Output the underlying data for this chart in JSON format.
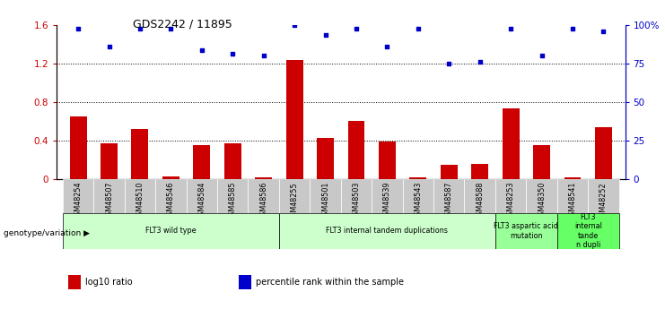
{
  "title": "GDS2242 / 11895",
  "samples": [
    "GSM48254",
    "GSM48507",
    "GSM48510",
    "GSM48546",
    "GSM48584",
    "GSM48585",
    "GSM48586",
    "GSM48255",
    "GSM48501",
    "GSM48503",
    "GSM48539",
    "GSM48543",
    "GSM48587",
    "GSM48588",
    "GSM48253",
    "GSM48350",
    "GSM48541",
    "GSM48252"
  ],
  "log10_ratio": [
    0.65,
    0.37,
    0.52,
    0.03,
    0.35,
    0.37,
    0.02,
    1.23,
    0.43,
    0.6,
    0.39,
    0.02,
    0.15,
    0.16,
    0.73,
    0.35,
    0.02,
    0.54
  ],
  "percentile_rank": [
    97.5,
    86.0,
    97.5,
    97.5,
    83.5,
    81.0,
    80.0,
    100.0,
    93.5,
    97.5,
    86.0,
    97.5,
    75.0,
    76.0,
    97.5,
    80.0,
    97.5,
    95.5
  ],
  "bar_color": "#cc0000",
  "dot_color": "#0000cc",
  "groups": [
    {
      "label": "FLT3 wild type",
      "start": 0,
      "end": 6,
      "color": "#ccffcc"
    },
    {
      "label": "FLT3 internal tandem duplications",
      "start": 7,
      "end": 13,
      "color": "#ccffcc"
    },
    {
      "label": "FLT3 aspartic acid\nmutation",
      "start": 14,
      "end": 15,
      "color": "#99ff99"
    },
    {
      "label": "FLT3\ninternal\ntande\nn dupli",
      "start": 16,
      "end": 17,
      "color": "#66ff66"
    }
  ],
  "ylim_left": [
    0,
    1.6
  ],
  "yticks_left": [
    0,
    0.4,
    0.8,
    1.2,
    1.6
  ],
  "ytick_labels_left": [
    "0",
    "0.4",
    "0.8",
    "1.2",
    "1.6"
  ],
  "ytick_labels_right": [
    "0",
    "25",
    "50",
    "75",
    "100%"
  ],
  "dotted_lines": [
    0.4,
    0.8,
    1.2
  ],
  "legend_items": [
    {
      "color": "#cc0000",
      "label": "log10 ratio"
    },
    {
      "color": "#0000cc",
      "label": "percentile rank within the sample"
    }
  ],
  "genotype_label": "genotype/variation ▶",
  "tick_bg_color": "#c8c8c8"
}
